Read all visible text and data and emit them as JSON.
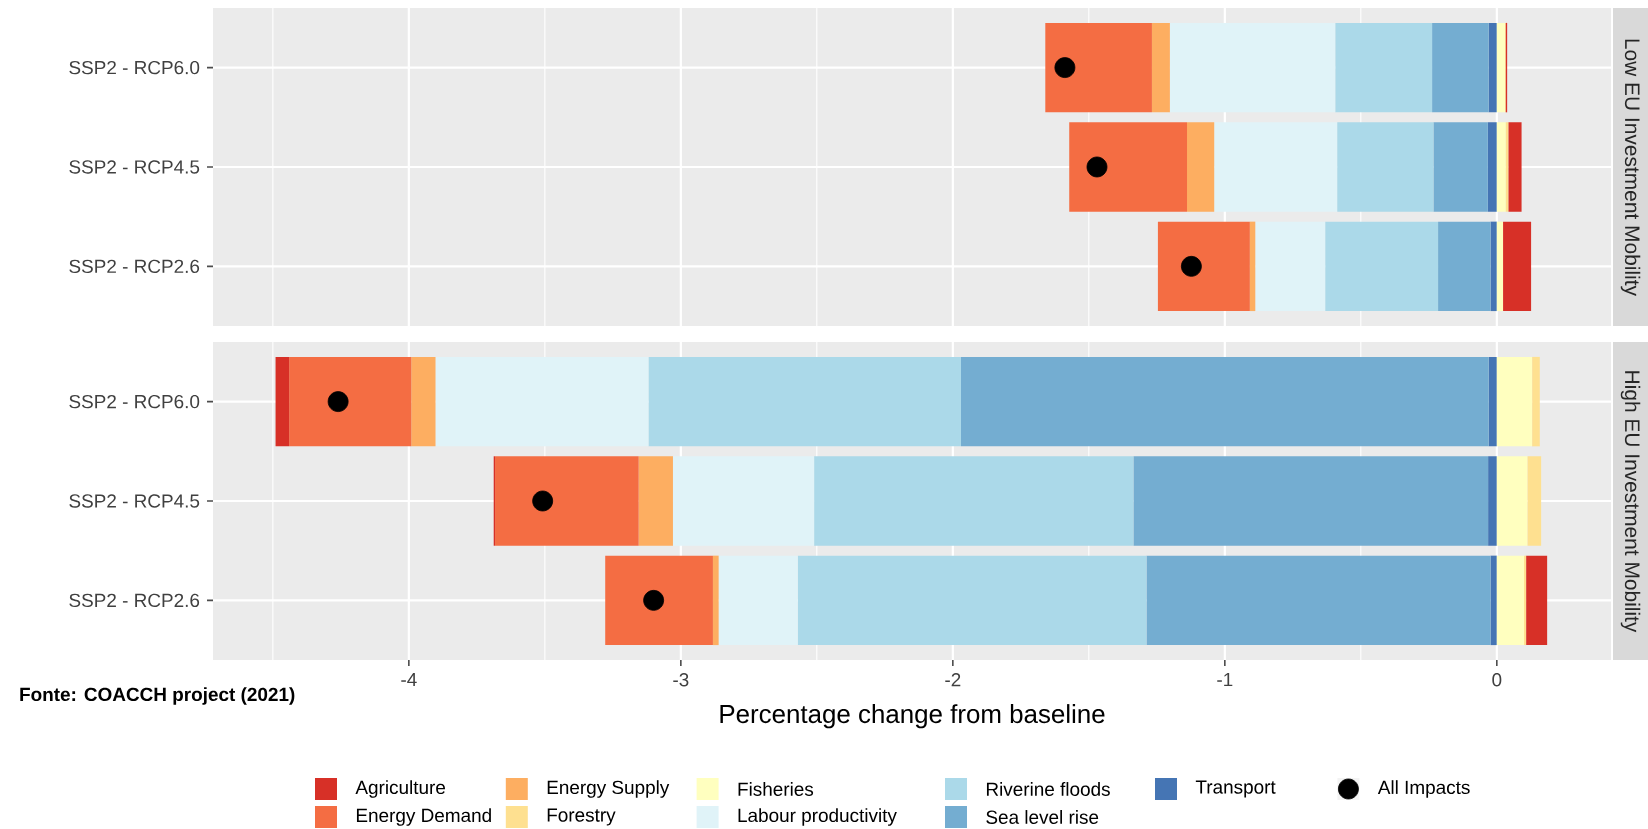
{
  "chart_data": [
    {
      "type": "bar",
      "orientation": "horizontal",
      "stacked": true,
      "title": "Low EU Investment Mobility",
      "categories": [
        "SSP2 - RCP6.0",
        "SSP2 - RCP4.5",
        "SSP2 - RCP2.6"
      ],
      "xlim": [
        -4.72,
        0.42
      ],
      "xticks": [
        -4,
        -3,
        -2,
        -1,
        0
      ],
      "tick_labels": "y",
      "grid": true,
      "marker": "circle",
      "series": [
        {
          "color": "#4575b4",
          "values": [
            -0.03,
            -0.033,
            -0.023
          ]
        },
        {
          "color": "#74add1",
          "values": [
            -0.208,
            -0.2,
            -0.193
          ]
        },
        {
          "color": "#abd9e9",
          "values": [
            -0.356,
            -0.354,
            -0.415
          ]
        },
        {
          "color": "#e0f3f8",
          "values": [
            -0.608,
            -0.452,
            -0.257
          ]
        },
        {
          "color": "#ffffbf",
          "values": [
            0.03,
            0.033,
            0.023
          ]
        },
        {
          "color": "#fee090",
          "values": [
            0.003,
            0.01,
            null
          ]
        },
        {
          "color": "#fdae61",
          "values": [
            -0.066,
            -0.1,
            -0.02
          ]
        },
        {
          "color": "#f46d43",
          "values": [
            -0.392,
            -0.433,
            -0.338
          ]
        },
        {
          "color": "#d73027",
          "values": [
            0.005,
            0.048,
            0.103
          ]
        },
        {
          "type": "scatter",
          "color": "#000000",
          "values": [
            -1.588,
            -1.47,
            -1.123
          ]
        }
      ]
    },
    {
      "type": "bar",
      "orientation": "horizontal",
      "stacked": true,
      "title": "High EU Investment Mobility",
      "categories": [
        "SSP2 - RCP6.0",
        "SSP2 - RCP4.5",
        "SSP2 - RCP2.6"
      ],
      "xlabel": "Percentage change from baseline",
      "xlim": [
        -4.72,
        0.42
      ],
      "xticks": [
        -4,
        -3,
        -2,
        -1,
        0
      ],
      "grid": true,
      "marker": "circle",
      "legend": "bottom",
      "annotations": [
        "Fonte: COACCH project (2021)"
      ],
      "series": [
        {
          "name": "Transport",
          "color": "#4575b4",
          "values": [
            -0.03,
            -0.032,
            -0.023
          ]
        },
        {
          "name": "Sea level rise",
          "color": "#74add1",
          "values": [
            -1.94,
            -1.304,
            -1.265
          ]
        },
        {
          "name": "Riverine floods",
          "color": "#abd9e9",
          "values": [
            -1.149,
            -1.174,
            -1.282
          ]
        },
        {
          "name": "Labour productivity",
          "color": "#e0f3f8",
          "values": [
            -0.783,
            -0.519,
            -0.291
          ]
        },
        {
          "name": "Fisheries",
          "color": "#ffffbf",
          "values": [
            0.13,
            0.113,
            0.1
          ]
        },
        {
          "name": "Forestry",
          "color": "#fee090",
          "values": [
            0.028,
            0.05,
            0.008
          ]
        },
        {
          "name": "Energy Supply",
          "color": "#fdae61",
          "values": [
            -0.089,
            -0.126,
            -0.021
          ]
        },
        {
          "name": "Energy Demand",
          "color": "#f46d43",
          "values": [
            -0.449,
            -0.528,
            -0.396
          ]
        },
        {
          "name": "Agriculture",
          "color": "#d73027",
          "values": [
            -0.05,
            -0.005,
            0.077
          ]
        },
        {
          "name": "All Impacts",
          "type": "scatter",
          "color": "#000000",
          "values": [
            -4.26,
            -3.508,
            -3.1
          ]
        }
      ]
    }
  ]
}
